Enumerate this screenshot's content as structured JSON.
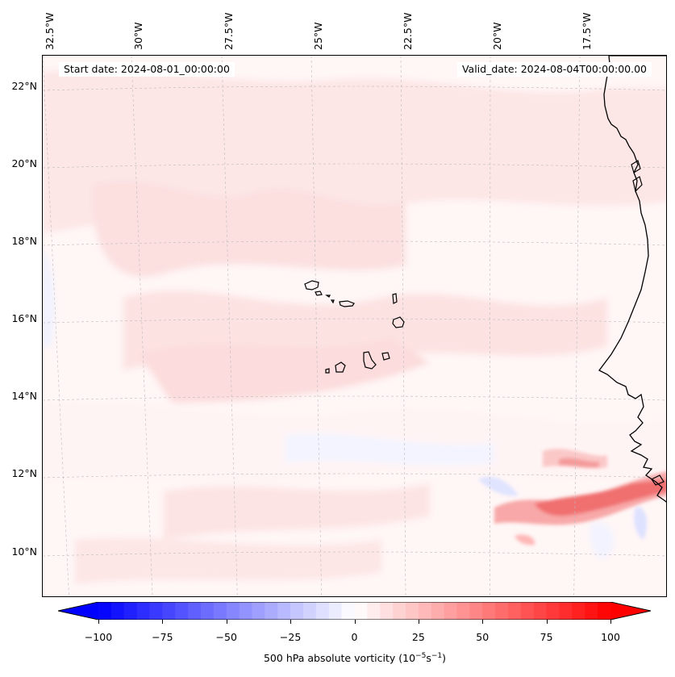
{
  "map": {
    "info": {
      "start_label": "Start date: 2024-08-01_00:00:00",
      "valid_label": "Valid_date: 2024-08-04T00:00:00.00"
    },
    "longitude_labels": [
      "32.5°W",
      "30°W",
      "27.5°W",
      "25°W",
      "22.5°W",
      "20°W",
      "17.5°W"
    ],
    "latitude_labels": [
      "22°N",
      "20°N",
      "18°N",
      "16°N",
      "14°N",
      "12°N",
      "10°N"
    ],
    "extent": {
      "lon_west": -32.6,
      "lon_east": -15.6,
      "lat_south": 8.8,
      "lat_north": 22.8
    },
    "field": {
      "variable": "500 hPa absolute vorticity",
      "units": "10^-5 s^-1",
      "description_regions": [
        "weak positive vorticity over most of the domain",
        "strong positive band near 11°N, 17-20°W"
      ]
    },
    "features": [
      "Cape Verde islands",
      "West African coastline (Mauritania, Senegal, Guinea-Bissau)"
    ]
  },
  "colorbar": {
    "min": -100,
    "max": 100,
    "ticks": [
      "−100",
      "−75",
      "−50",
      "−25",
      "0",
      "25",
      "50",
      "75",
      "100"
    ],
    "label_text": "500 hPa absolute vorticity (10",
    "label_exp1": "−5",
    "label_mid": "s",
    "label_exp2": "−1",
    "label_end": ")",
    "colors": {
      "negative": "#0000ff",
      "zero": "#ffffff",
      "positive": "#ff0000"
    }
  }
}
